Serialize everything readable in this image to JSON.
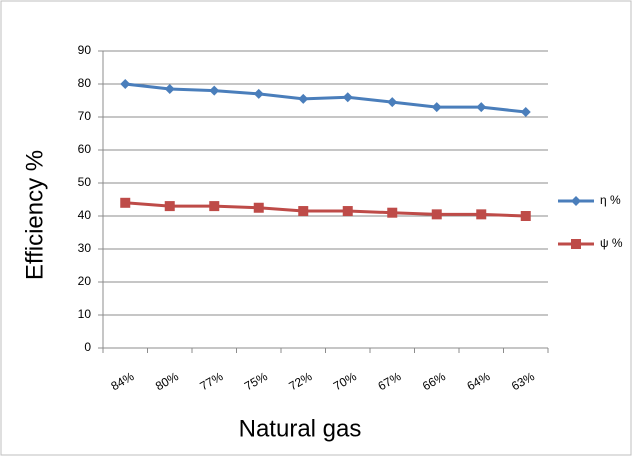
{
  "chart_data": {
    "type": "line",
    "categories": [
      "84%",
      "80%",
      "77%",
      "75%",
      "72%",
      "70%",
      "67%",
      "66%",
      "64%",
      "63%"
    ],
    "series": [
      {
        "name": "η %",
        "color": "#4a7ebb",
        "marker": "diamond",
        "values": [
          80,
          78.5,
          78,
          77,
          75.5,
          76,
          74.5,
          73,
          73,
          71.5
        ]
      },
      {
        "name": "ψ %",
        "color": "#be4b48",
        "marker": "square",
        "values": [
          44,
          43,
          43,
          42.5,
          41.5,
          41.5,
          41,
          40.5,
          40.5,
          40
        ]
      }
    ],
    "ylim": [
      0,
      90
    ],
    "yticks": [
      0,
      10,
      20,
      30,
      40,
      50,
      60,
      70,
      80,
      90
    ],
    "xlabel": "Natural gas",
    "ylabel": "Efficiency %",
    "grid": true,
    "legend": "right"
  }
}
